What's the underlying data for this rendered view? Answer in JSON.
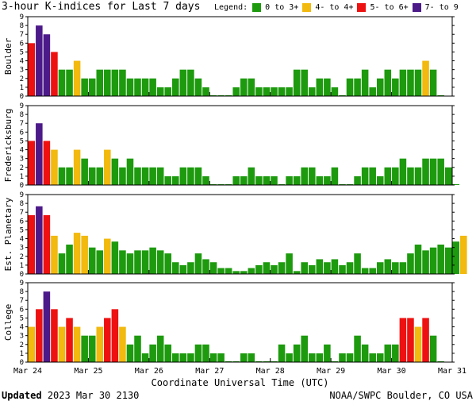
{
  "header": {
    "title": "3-hour K-indices for Last 7 days",
    "legend_label": "Legend:"
  },
  "legend": [
    {
      "label": "0 to 3+",
      "color": "#1d9a0e"
    },
    {
      "label": "4- to 4+",
      "color": "#f2b90e"
    },
    {
      "label": "5- to 6+",
      "color": "#ee1111"
    },
    {
      "label": "7- to 9",
      "color": "#4d1a8a"
    }
  ],
  "footer": {
    "updated_label": "Updated",
    "updated_value": "2023 Mar 30 2130",
    "credit": "NOAA/SWPC Boulder, CO USA"
  },
  "chart_data": {
    "type": "bar",
    "xlabel": "Coordinate Universal Time (UTC)",
    "x_ticks": [
      "Mar 24",
      "Mar 25",
      "Mar 26",
      "Mar 27",
      "Mar 28",
      "Mar 29",
      "Mar 30",
      "Mar 31"
    ],
    "y_ticks": [
      "0",
      "1",
      "2",
      "3",
      "4",
      "5",
      "6",
      "7",
      "8",
      "9"
    ],
    "ylim": [
      0,
      9
    ],
    "bins_per_day": 8,
    "grid": false,
    "color_thresholds": [
      {
        "min": 0,
        "max": 3.99,
        "color": "#1d9a0e"
      },
      {
        "min": 4,
        "max": 4.99,
        "color": "#f2b90e"
      },
      {
        "min": 5,
        "max": 6.99,
        "color": "#ee1111"
      },
      {
        "min": 7,
        "max": 9,
        "color": "#4d1a8a"
      }
    ],
    "panels": [
      {
        "name": "Boulder",
        "values": [
          6,
          8,
          7,
          5,
          3,
          3,
          4,
          2,
          2,
          3,
          3,
          3,
          3,
          2,
          2,
          2,
          2,
          1,
          1,
          2,
          3,
          3,
          2,
          1,
          0.1,
          0.1,
          0.1,
          1,
          2,
          2,
          1,
          1,
          1,
          1,
          1,
          3,
          3,
          1,
          2,
          2,
          1,
          0.1,
          2,
          2,
          3,
          1,
          2,
          3,
          2,
          3,
          3,
          3,
          4,
          3,
          0.1
        ]
      },
      {
        "name": "Fredericksburg",
        "values": [
          5,
          7,
          5,
          4,
          2,
          2,
          4,
          3,
          2,
          2,
          4,
          3,
          2,
          3,
          2,
          2,
          2,
          2,
          1,
          1,
          2,
          2,
          2,
          1,
          0.1,
          0.1,
          0.1,
          1,
          1,
          2,
          1,
          1,
          1,
          0.1,
          1,
          1,
          2,
          2,
          1,
          1,
          2,
          0.1,
          0.1,
          1,
          2,
          2,
          1,
          2,
          2,
          3,
          2,
          2,
          3,
          3,
          3,
          2,
          0.1
        ]
      },
      {
        "name": "Est. Planetary",
        "values": [
          6.67,
          7.67,
          6.67,
          4.33,
          2.33,
          3.33,
          4.67,
          4.33,
          3,
          2.67,
          4,
          3.67,
          2.67,
          2.33,
          2.67,
          2.67,
          3,
          2.67,
          2.33,
          1.33,
          1,
          1.33,
          2.33,
          1.67,
          1.33,
          0.67,
          0.67,
          0.33,
          0.33,
          0.67,
          1,
          1.33,
          1,
          1.33,
          2.33,
          0.33,
          1.33,
          1,
          1.67,
          1.33,
          1.67,
          1,
          1.33,
          2.33,
          0.67,
          0.67,
          1.33,
          1.67,
          1.33,
          1.33,
          2.33,
          3.33,
          2.67,
          3,
          3.33,
          3,
          3.67,
          4.33
        ]
      },
      {
        "name": "College",
        "values": [
          4,
          6,
          8,
          6,
          4,
          5,
          4,
          3,
          3,
          4,
          5,
          6,
          4,
          2,
          3,
          1,
          2,
          3,
          2,
          1,
          1,
          1,
          2,
          2,
          1,
          1,
          0.1,
          0.1,
          1,
          1,
          0.1,
          0.1,
          0.1,
          2,
          1,
          2,
          3,
          1,
          1,
          2,
          0.1,
          1,
          1,
          3,
          2,
          1,
          1,
          2,
          2,
          5,
          5,
          4,
          5,
          3,
          0.1
        ]
      }
    ]
  }
}
